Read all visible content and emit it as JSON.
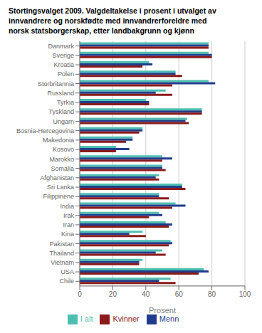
{
  "chart_data": {
    "type": "bar",
    "title": "Stortingsvalget 2009. Valgdeltakelse i prosent i utvalget av\ninnvandrere og norskfødte med innvandrerforeldre med\nnorsk statsborgerskap, etter landbakgrunn og kjønn",
    "orientation": "horizontal",
    "categories": [
      "Danmark",
      "Sverige",
      "Kroatia",
      "Polen",
      "Storbritannia",
      "Russland",
      "Tyrkia",
      "Tyskland",
      "Ungarn",
      "Bosnia-Hercegovina",
      "Makedonia",
      "Kosovo",
      "Marokko",
      "Somalia",
      "Afghanistan",
      "Sri Lanka",
      "Filippinene",
      "India",
      "Irak",
      "Iran",
      "Kina",
      "Pakistan",
      "Thailand",
      "Vietnam",
      "USA",
      "Chile"
    ],
    "series": [
      {
        "name": "I alt",
        "color": "#4dbfb0",
        "values": [
          78,
          78,
          42,
          58,
          78,
          52,
          40,
          74,
          65,
          38,
          32,
          22,
          50,
          50,
          48,
          62,
          48,
          58,
          48,
          52,
          38,
          55,
          50,
          38,
          75,
          55
        ]
      },
      {
        "name": "Menn",
        "color": "#1f3d8c",
        "values": [
          78,
          80,
          44,
          58,
          82,
          46,
          42,
          74,
          64,
          38,
          32,
          30,
          56,
          50,
          46,
          62,
          48,
          64,
          50,
          56,
          30,
          56,
          46,
          36,
          78,
          48
        ]
      },
      {
        "name": "Kvinner",
        "color": "#8b1a1a",
        "values": [
          78,
          80,
          38,
          62,
          56,
          56,
          42,
          74,
          66,
          36,
          28,
          22,
          50,
          52,
          48,
          64,
          54,
          56,
          42,
          54,
          40,
          54,
          52,
          36,
          72,
          58
        ]
      }
    ],
    "xlabel": "Prosent",
    "xlim": [
      0,
      100
    ],
    "xticks": [
      0,
      20,
      40,
      60,
      80,
      100
    ],
    "grid": true,
    "legend": "bottom"
  }
}
